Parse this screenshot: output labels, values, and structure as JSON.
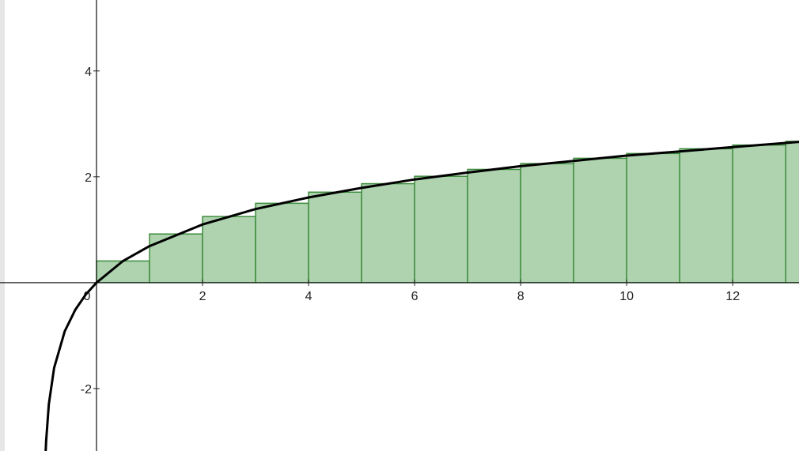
{
  "chart_data": {
    "type": "line",
    "xlim": [
      -1.82,
      13.25
    ],
    "ylim": [
      -3.18,
      5.34
    ],
    "xticks": [
      0,
      2,
      4,
      6,
      8,
      10,
      12
    ],
    "yticks": [
      -2,
      2,
      4
    ],
    "series": [
      {
        "color": "#000000",
        "x": [
          -0.96,
          -0.95,
          -0.9,
          -0.8,
          -0.6,
          -0.4,
          -0.2,
          0,
          0.5,
          1,
          2,
          3,
          4,
          5,
          6,
          7,
          8,
          9,
          10,
          11,
          12,
          13,
          13.25
        ],
        "values": [
          -3.22,
          -3.0,
          -2.3,
          -1.61,
          -0.92,
          -0.51,
          -0.22,
          0,
          0.41,
          0.69,
          1.1,
          1.39,
          1.61,
          1.79,
          1.95,
          2.08,
          2.2,
          2.3,
          2.4,
          2.48,
          2.56,
          2.64,
          2.66
        ]
      }
    ],
    "bars": {
      "color": "#aed3ae",
      "edge_color": "#3d8c3d",
      "bins": [
        0,
        1,
        2,
        3,
        4,
        5,
        6,
        7,
        8,
        9,
        10,
        11,
        12,
        13,
        14
      ],
      "values": [
        0.41,
        0.92,
        1.25,
        1.5,
        1.71,
        1.87,
        2.01,
        2.14,
        2.25,
        2.35,
        2.44,
        2.53,
        2.6,
        2.67
      ]
    }
  }
}
